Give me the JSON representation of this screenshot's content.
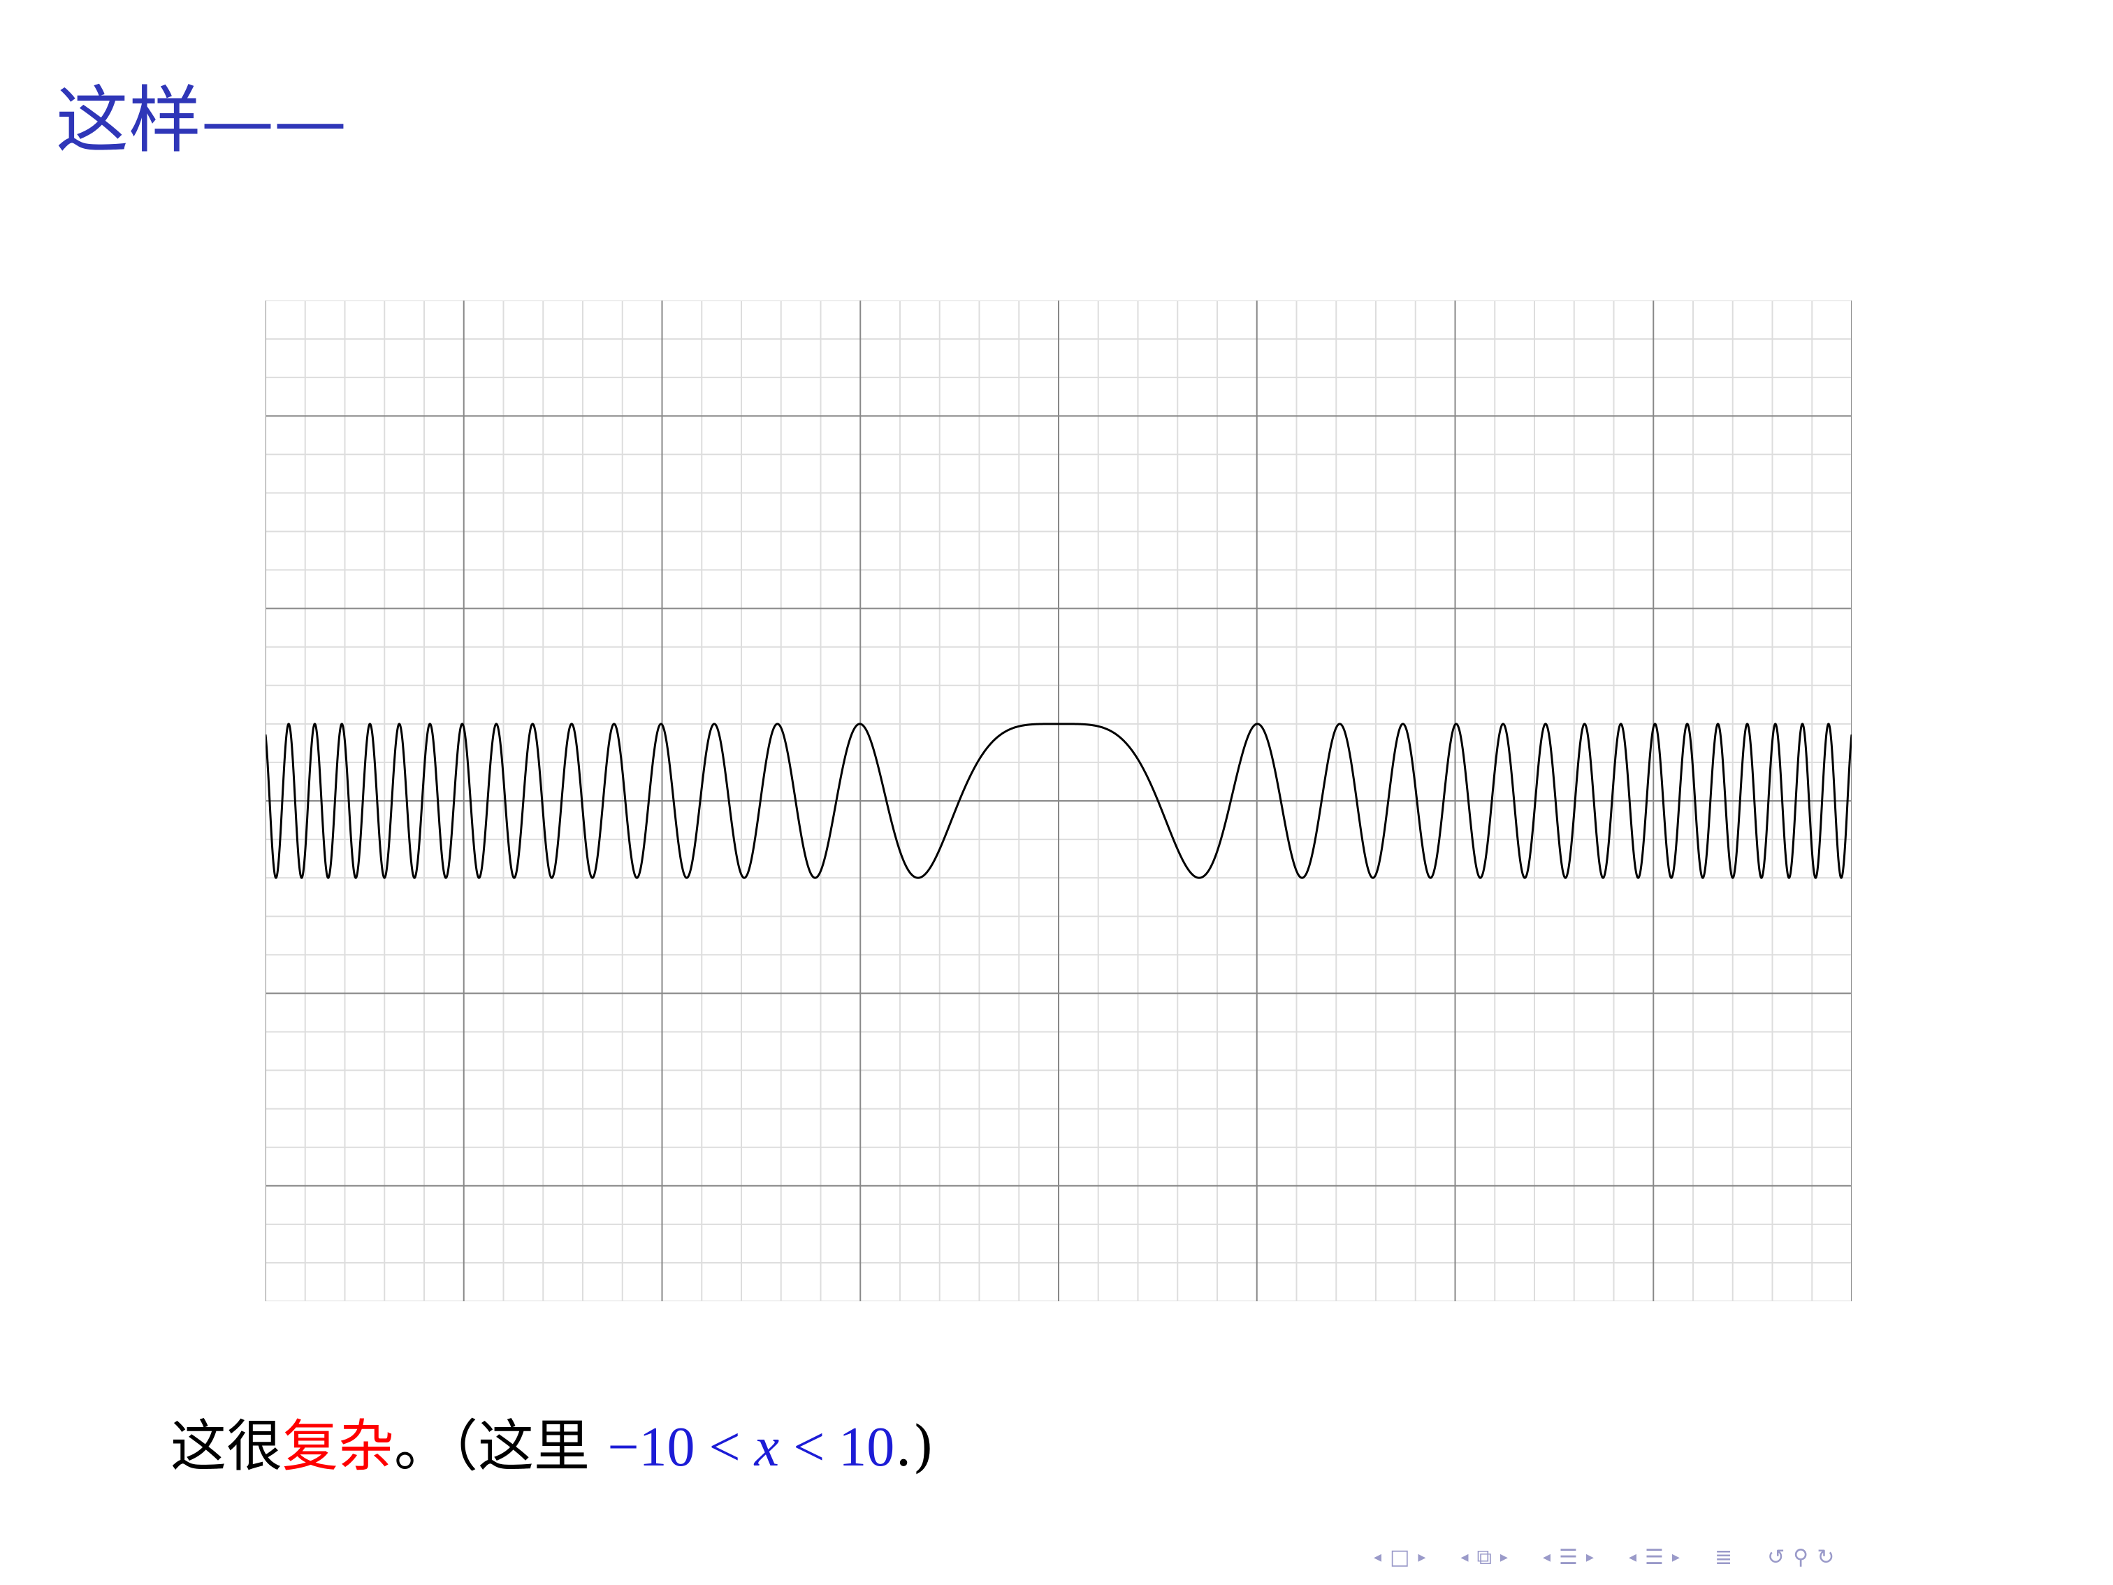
{
  "slide": {
    "title": "这样——",
    "caption": {
      "prefix": "这很",
      "highlight": "复杂",
      "suffix": "。（这里 ",
      "math_lhs": "−10 < ",
      "math_var": "x",
      "math_rhs": " < 10",
      "end": ".)"
    },
    "colors": {
      "title": "#2f36b8",
      "highlight": "#ff0000",
      "math": "#1c1cd6",
      "nav": "#9a9ac9"
    }
  },
  "navigation": {
    "icons": [
      "arrow-left-icon",
      "frame-icon",
      "arrow-right-icon",
      "arrow-left-icon",
      "subsection-icon",
      "arrow-right-icon",
      "arrow-left-icon",
      "section-icon",
      "arrow-right-icon",
      "arrow-left-icon",
      "presentation-icon",
      "arrow-right-icon",
      "align-icon",
      "undo-icon",
      "search-icon",
      "redo-icon"
    ]
  },
  "chart_data": {
    "type": "line",
    "function": "cos(x^2)",
    "xlim": [
      -10,
      10
    ],
    "ylim": [
      -6.5,
      6.5
    ],
    "grid": true,
    "axis_tick_labels": false,
    "major_grid_step": 2.5,
    "minor_grid_step": 0.5,
    "x": [
      -10,
      -9,
      -8,
      -7,
      -6,
      -5,
      -4,
      -3,
      -2,
      -1,
      0,
      1,
      2,
      3,
      4,
      5,
      6,
      7,
      8,
      9,
      10
    ],
    "y": [
      0.862,
      0.995,
      0.392,
      0.3,
      -0.992,
      0.991,
      -0.958,
      -0.911,
      -0.654,
      0.54,
      1.0,
      0.54,
      -0.654,
      -0.911,
      -0.958,
      0.991,
      -0.992,
      0.3,
      0.392,
      0.995,
      0.862
    ],
    "colors": {
      "line": "#000000",
      "major_grid": "#888888",
      "minor_grid": "#dddddd"
    }
  }
}
